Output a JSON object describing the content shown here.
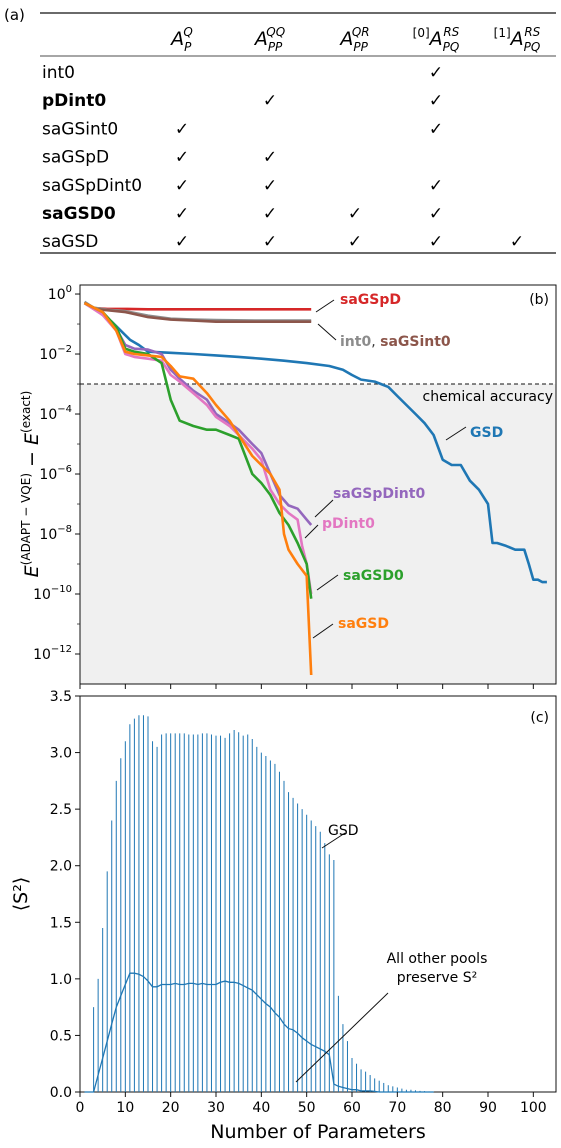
{
  "table": {
    "panel_label": "(a)",
    "headers": [
      "A_P^Q",
      "A_PP^QQ",
      "A_PP^QR",
      "[0]A_PQ^RS",
      "[1]A_PQ^RS"
    ],
    "rows": [
      {
        "name": "int0",
        "bold": false,
        "checks": [
          false,
          false,
          false,
          true,
          false
        ]
      },
      {
        "name": "pDint0",
        "bold": true,
        "checks": [
          false,
          true,
          false,
          true,
          false
        ]
      },
      {
        "name": "saGSint0",
        "bold": false,
        "checks": [
          true,
          false,
          false,
          true,
          false
        ]
      },
      {
        "name": "saGSpD",
        "bold": false,
        "checks": [
          true,
          true,
          false,
          false,
          false
        ]
      },
      {
        "name": "saGSpDint0",
        "bold": false,
        "checks": [
          true,
          true,
          false,
          true,
          false
        ]
      },
      {
        "name": "saGSD0",
        "bold": true,
        "checks": [
          true,
          true,
          true,
          true,
          false
        ]
      },
      {
        "name": "saGSD",
        "bold": false,
        "checks": [
          true,
          true,
          true,
          true,
          true
        ]
      }
    ],
    "check_glyph": "✓"
  },
  "chart_data": [
    {
      "panel_label": "(b)",
      "type": "line",
      "ylabel": "E^(ADAPT−VQE) − E^(exact)",
      "yscale": "log",
      "xlim": [
        0,
        105
      ],
      "ylim": [
        1e-13,
        2
      ],
      "ytick_labels": [
        "10^0",
        "10^-2",
        "10^-4",
        "10^-6",
        "10^-8",
        "10^-10",
        "10^-12"
      ],
      "threshold": {
        "label": "chemical accuracy",
        "value": 0.0016
      },
      "series": [
        {
          "name": "saGSpD",
          "color": "#d62728",
          "x": [
            1,
            3,
            6,
            10,
            15,
            20,
            51
          ],
          "y": [
            0.5,
            0.34,
            0.32,
            0.32,
            0.31,
            0.31,
            0.31
          ]
        },
        {
          "name": "int0",
          "color": "#8c8c8c",
          "x": [
            1,
            3,
            6,
            10,
            15,
            20,
            25,
            30,
            40,
            51
          ],
          "y": [
            0.55,
            0.35,
            0.3,
            0.27,
            0.19,
            0.15,
            0.14,
            0.135,
            0.13,
            0.13
          ]
        },
        {
          "name": "saGSint0",
          "color": "#8c564b",
          "x": [
            1,
            3,
            6,
            10,
            15,
            20,
            25,
            30,
            40,
            51
          ],
          "y": [
            0.5,
            0.32,
            0.29,
            0.25,
            0.17,
            0.14,
            0.13,
            0.12,
            0.12,
            0.12
          ]
        },
        {
          "name": "GSD",
          "color": "#1f77b4",
          "x": [
            1,
            3,
            5,
            7,
            9,
            11,
            13,
            15,
            20,
            25,
            30,
            35,
            40,
            45,
            50,
            55,
            58,
            60,
            62,
            65,
            68,
            70,
            72,
            74,
            76,
            78,
            80,
            82,
            84,
            86,
            88,
            90,
            91,
            92,
            94,
            96,
            98,
            99,
            100,
            101,
            102,
            103
          ],
          "y": [
            0.5,
            0.35,
            0.2,
            0.12,
            0.06,
            0.03,
            0.02,
            0.012,
            0.011,
            0.01,
            0.009,
            0.008,
            0.007,
            0.006,
            0.005,
            0.004,
            0.003,
            0.002,
            0.0014,
            0.0012,
            0.0008,
            0.0004,
            0.0002,
            0.0001,
            5e-05,
            2e-05,
            3e-06,
            2e-06,
            2e-06,
            6e-07,
            3e-07,
            1e-07,
            5e-09,
            5e-09,
            4e-09,
            3e-09,
            3e-09,
            1e-09,
            3e-10,
            3e-10,
            2.5e-10,
            2.5e-10
          ]
        },
        {
          "name": "saGSpDint0",
          "color": "#9467bd",
          "x": [
            1,
            5,
            8,
            10,
            12,
            15,
            18,
            20,
            22,
            25,
            28,
            30,
            33,
            35,
            38,
            40,
            42,
            44,
            46,
            48,
            50,
            51
          ],
          "y": [
            0.5,
            0.25,
            0.07,
            0.02,
            0.015,
            0.014,
            0.01,
            0.003,
            0.0015,
            0.0006,
            0.0003,
            0.0001,
            5e-05,
            3e-05,
            1e-05,
            5e-06,
            1e-06,
            2e-07,
            9e-08,
            7e-08,
            3e-08,
            2e-08
          ]
        },
        {
          "name": "pDint0",
          "color": "#e377c2",
          "x": [
            1,
            5,
            8,
            10,
            12,
            15,
            18,
            20,
            22,
            25,
            28,
            30,
            33,
            35,
            38,
            40,
            42,
            44,
            46,
            48,
            49,
            50,
            51
          ],
          "y": [
            0.5,
            0.2,
            0.06,
            0.01,
            0.008,
            0.007,
            0.006,
            0.002,
            0.0012,
            0.0005,
            0.0002,
            8e-05,
            4e-05,
            2e-05,
            7e-06,
            3e-06,
            3e-07,
            1e-07,
            5e-08,
            3e-08,
            4e-09,
            1e-09,
            1e-10
          ]
        },
        {
          "name": "saGSD0",
          "color": "#2ca02c",
          "x": [
            1,
            5,
            8,
            10,
            12,
            15,
            18,
            20,
            22,
            25,
            28,
            30,
            33,
            35,
            38,
            40,
            42,
            44,
            46,
            48,
            50,
            51
          ],
          "y": [
            0.5,
            0.25,
            0.08,
            0.015,
            0.012,
            0.01,
            0.005,
            0.0003,
            6e-05,
            4e-05,
            3e-05,
            3e-05,
            2e-05,
            1.5e-05,
            1e-06,
            5e-07,
            2e-07,
            5e-08,
            2e-08,
            5e-09,
            1e-09,
            7e-11
          ]
        },
        {
          "name": "saGSD",
          "color": "#ff7f0e",
          "x": [
            1,
            5,
            8,
            10,
            12,
            15,
            18,
            20,
            22,
            25,
            28,
            30,
            33,
            35,
            38,
            40,
            42,
            44,
            45,
            46,
            48,
            50,
            51
          ],
          "y": [
            0.5,
            0.25,
            0.06,
            0.012,
            0.01,
            0.009,
            0.008,
            0.004,
            0.0018,
            0.0015,
            0.0005,
            0.0002,
            6e-05,
            2e-05,
            4e-06,
            2e-06,
            1e-06,
            3e-07,
            1e-08,
            3e-09,
            1e-09,
            4e-10,
            2e-13
          ]
        }
      ],
      "series_labels": [
        {
          "text": "saGSpD",
          "color": "#d62728"
        },
        {
          "text": "int0",
          "color": "#8c8c8c"
        },
        {
          "text": ", ",
          "color": "#333333"
        },
        {
          "text": "saGSint0",
          "color": "#8c564b"
        },
        {
          "text": "GSD",
          "color": "#1f77b4"
        },
        {
          "text": "saGSpDint0",
          "color": "#9467bd"
        },
        {
          "text": "pDint0",
          "color": "#e377c2"
        },
        {
          "text": "saGSD0",
          "color": "#2ca02c"
        },
        {
          "text": "saGSD",
          "color": "#ff7f0e"
        }
      ]
    },
    {
      "panel_label": "(c)",
      "type": "bar",
      "xlabel": "Number of Parameters",
      "ylabel": "⟨S²⟩",
      "xlim": [
        0,
        105
      ],
      "ylim": [
        0,
        3.5
      ],
      "xticks": [
        0,
        10,
        20,
        30,
        40,
        50,
        60,
        70,
        80,
        90,
        100
      ],
      "yticks": [
        0.0,
        0.5,
        1.0,
        1.5,
        2.0,
        2.5,
        3.0,
        3.5
      ],
      "ytick_labels": [
        "0.0",
        "0.5",
        "1.0",
        "1.5",
        "2.0",
        "2.5",
        "3.0",
        "3.5"
      ],
      "color": "#1f77b4",
      "x": [
        1,
        2,
        3,
        4,
        5,
        6,
        7,
        8,
        9,
        10,
        11,
        12,
        13,
        14,
        15,
        16,
        17,
        18,
        19,
        20,
        21,
        22,
        23,
        24,
        25,
        26,
        27,
        28,
        29,
        30,
        31,
        32,
        33,
        34,
        35,
        36,
        37,
        38,
        39,
        40,
        41,
        42,
        43,
        44,
        45,
        46,
        47,
        48,
        49,
        50,
        51,
        52,
        53,
        54,
        55,
        56,
        57,
        58,
        59,
        60,
        61,
        62,
        63,
        64,
        65,
        66,
        67,
        68,
        69,
        70,
        71,
        72,
        73,
        74,
        75,
        76,
        77,
        78
      ],
      "bar_values": [
        0.0,
        0.0,
        0.75,
        1.0,
        1.45,
        1.95,
        2.4,
        2.75,
        2.95,
        3.1,
        3.25,
        3.3,
        3.33,
        3.33,
        3.32,
        3.1,
        3.05,
        3.16,
        3.17,
        3.17,
        3.17,
        3.17,
        3.17,
        3.16,
        3.16,
        3.16,
        3.17,
        3.17,
        3.16,
        3.15,
        3.15,
        3.13,
        3.17,
        3.2,
        3.18,
        3.15,
        3.16,
        3.12,
        3.05,
        3.0,
        2.97,
        2.93,
        2.9,
        2.83,
        2.75,
        2.65,
        2.6,
        2.55,
        2.5,
        2.45,
        2.4,
        2.35,
        2.3,
        2.2,
        2.1,
        2.05,
        0.85,
        0.6,
        0.45,
        0.3,
        0.25,
        0.2,
        0.18,
        0.15,
        0.12,
        0.1,
        0.08,
        0.06,
        0.05,
        0.04,
        0.03,
        0.02,
        0.02,
        0.015,
        0.01,
        0.008,
        0.005,
        0.003
      ],
      "line_values": [
        0.0,
        0.0,
        0.0,
        0.15,
        0.3,
        0.45,
        0.6,
        0.75,
        0.85,
        0.95,
        1.05,
        1.05,
        1.04,
        1.02,
        0.98,
        0.93,
        0.93,
        0.95,
        0.95,
        0.95,
        0.96,
        0.95,
        0.95,
        0.96,
        0.96,
        0.95,
        0.96,
        0.95,
        0.95,
        0.95,
        0.97,
        0.98,
        0.97,
        0.97,
        0.96,
        0.94,
        0.92,
        0.9,
        0.86,
        0.82,
        0.78,
        0.75,
        0.7,
        0.66,
        0.6,
        0.56,
        0.55,
        0.52,
        0.48,
        0.45,
        0.42,
        0.4,
        0.38,
        0.36,
        0.33,
        0.07,
        0.05,
        0.04,
        0.03,
        0.02,
        0.02,
        0.01,
        0.01,
        0.01,
        0.005,
        0.0,
        0.0,
        0.0,
        0.0,
        0.0,
        0.0,
        0.0,
        0.0,
        0.0,
        0.0,
        0.0,
        0.0,
        0.0
      ],
      "annotations": [
        {
          "text": "GSD"
        },
        {
          "text_line1": "All other pools",
          "text_line2": "preserve S²"
        }
      ]
    }
  ]
}
